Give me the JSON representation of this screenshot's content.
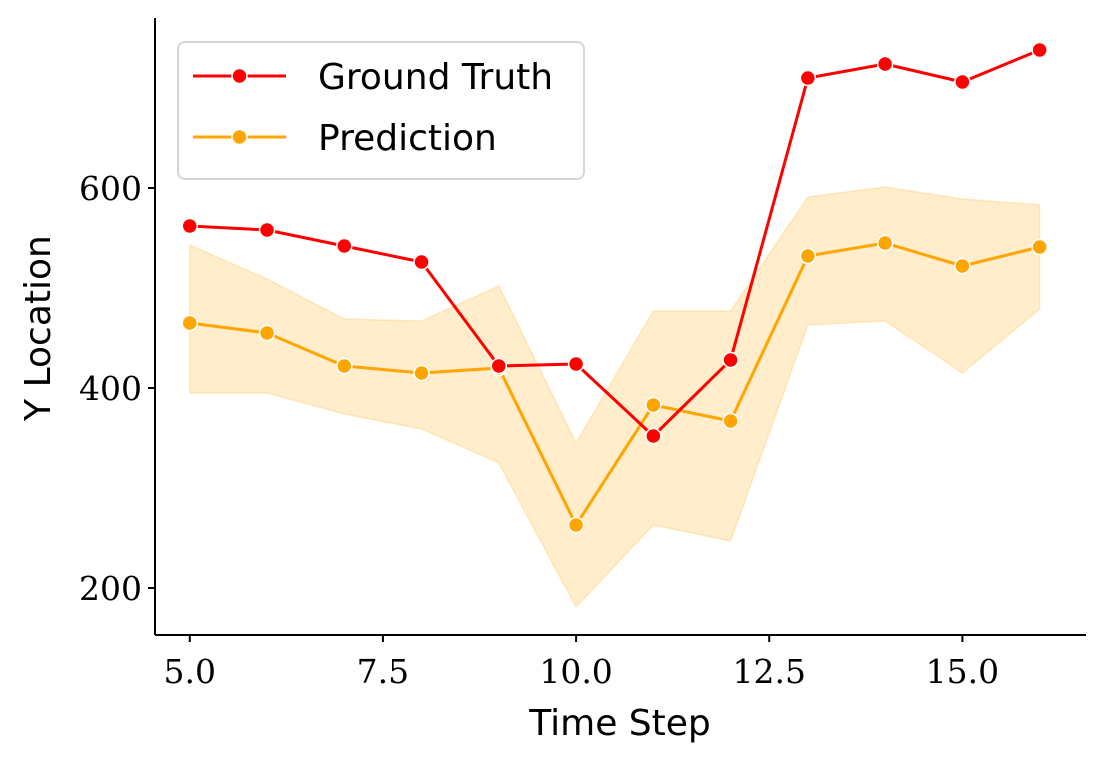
{
  "chart_data": {
    "type": "line",
    "xlabel": "Time Step",
    "ylabel": "Y Location",
    "xlim": [
      4.55,
      16.6
    ],
    "ylim": [
      153,
      770
    ],
    "xticks": [
      5.0,
      7.5,
      10.0,
      12.5,
      15.0
    ],
    "xtick_labels": [
      "5.0",
      "7.5",
      "10.0",
      "12.5",
      "15.0"
    ],
    "yticks": [
      200,
      400,
      600
    ],
    "ytick_labels": [
      "200",
      "400",
      "600"
    ],
    "grid": false,
    "legend_position": "top-left",
    "x": [
      5,
      6,
      7,
      8,
      9,
      10,
      11,
      12,
      13,
      14,
      15,
      16
    ],
    "series": [
      {
        "name": "Ground Truth",
        "color": "#ff0000",
        "values": [
          562,
          558,
          542,
          526,
          422,
          424,
          352,
          428,
          710,
          724,
          706,
          738
        ]
      },
      {
        "name": "Prediction",
        "color": "#ffa500",
        "values": [
          465,
          455,
          422,
          415,
          420,
          263,
          383,
          367,
          532,
          545,
          522,
          541
        ],
        "band_upper": [
          543,
          509,
          469,
          467,
          502,
          345,
          477,
          477,
          591,
          601,
          589,
          583
        ],
        "band_lower": [
          395,
          395,
          374,
          359,
          325,
          181,
          263,
          247,
          463,
          467,
          415,
          479
        ]
      }
    ]
  }
}
